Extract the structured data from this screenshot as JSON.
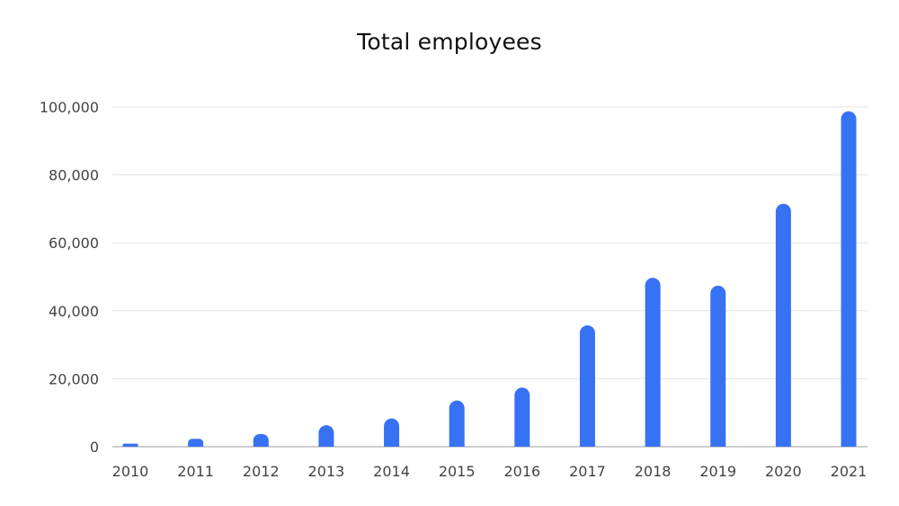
{
  "chart_data": {
    "type": "bar",
    "title": "Total employees",
    "xlabel": "",
    "ylabel": "",
    "categories": [
      "2010",
      "2011",
      "2012",
      "2013",
      "2014",
      "2015",
      "2016",
      "2017",
      "2018",
      "2019",
      "2020",
      "2021"
    ],
    "values": [
      900,
      2300,
      3700,
      6300,
      8300,
      13600,
      17400,
      35700,
      49700,
      47400,
      71500,
      98700
    ],
    "ylim": [
      0,
      100000
    ],
    "yticks": [
      0,
      20000,
      40000,
      60000,
      80000,
      100000
    ],
    "ytick_labels": [
      "0",
      "20,000",
      "40,000",
      "60,000",
      "80,000",
      "100,000"
    ],
    "grid": true,
    "legend": "none",
    "bar_color": "#3772f5"
  }
}
